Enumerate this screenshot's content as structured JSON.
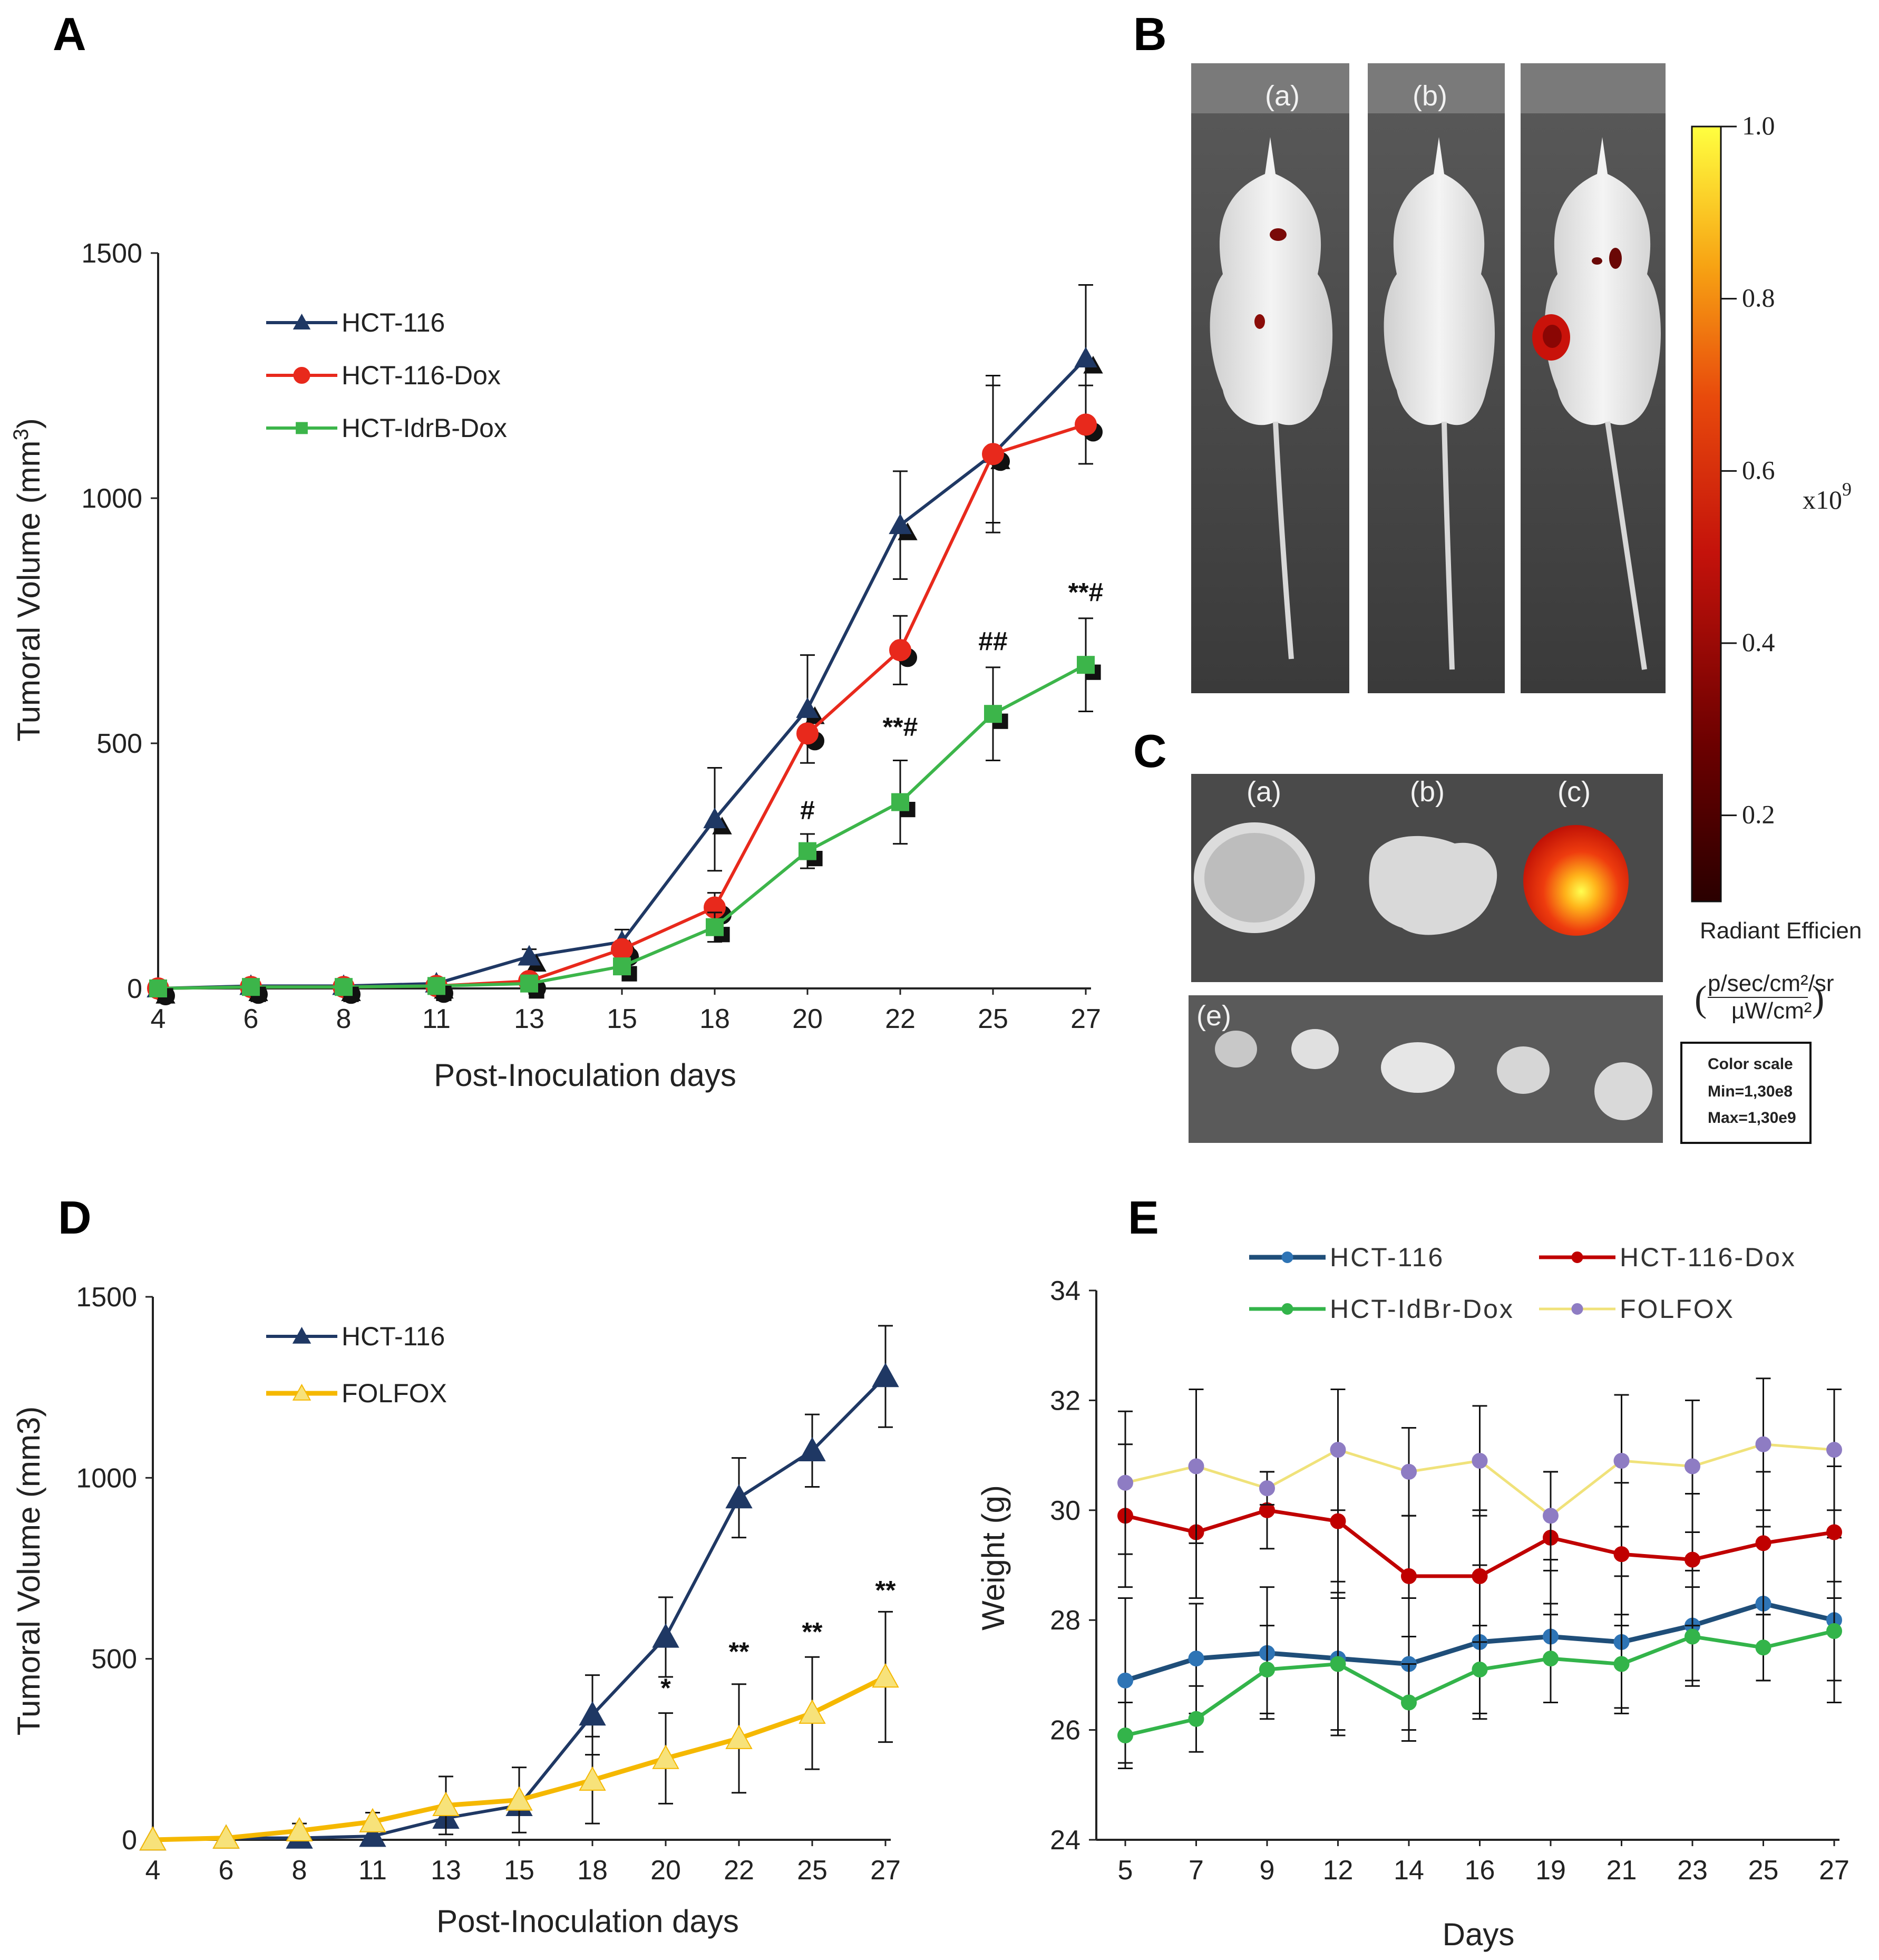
{
  "panels": {
    "A": "A",
    "B": "B",
    "C": "C",
    "D": "D",
    "E": "E"
  },
  "colors": {
    "hct116": "#1f3864",
    "hct116dox": "#e8291c",
    "hctidrb": "#3cb54a",
    "folfox_d": "#f5b800",
    "folfox_e": "#f0e27a",
    "folfox_e_marker": "#8e7cc3"
  },
  "chart_data": [
    {
      "id": "A",
      "type": "line",
      "xlabel": "Post-Inoculation days",
      "ylabel": "Tumoral Volume (mm",
      "ylabel_sup": "3",
      "ylabel_end": ")",
      "categories": [
        "4",
        "6",
        "8",
        "11",
        "13",
        "15",
        "18",
        "20",
        "22",
        "25",
        "27"
      ],
      "yticks": [
        "0",
        "500",
        "1000",
        "1500"
      ],
      "ylim": [
        0,
        1500
      ],
      "series": [
        {
          "name": "HCT-116",
          "marker": "triangle",
          "values": [
            0,
            5,
            5,
            10,
            65,
            95,
            345,
            570,
            945,
            1090,
            1285
          ],
          "errors": [
            0,
            0,
            0,
            0,
            15,
            25,
            105,
            110,
            110,
            160,
            150
          ]
        },
        {
          "name": "HCT-116-Dox",
          "marker": "circle",
          "values": [
            0,
            3,
            3,
            5,
            15,
            80,
            165,
            520,
            690,
            1090,
            1150
          ],
          "errors": [
            0,
            0,
            0,
            0,
            0,
            0,
            30,
            0,
            70,
            140,
            80
          ]
        },
        {
          "name": "HCT-IdrB-Dox",
          "marker": "square",
          "values": [
            0,
            3,
            3,
            5,
            10,
            45,
            125,
            280,
            380,
            560,
            660
          ],
          "errors": [
            0,
            0,
            0,
            0,
            0,
            0,
            30,
            35,
            85,
            95,
            95
          ]
        }
      ],
      "annotations": [
        {
          "x": "20",
          "text": "#",
          "y": 345
        },
        {
          "x": "22",
          "text": "**#",
          "y": 515
        },
        {
          "x": "25",
          "text": "##",
          "y": 690
        },
        {
          "x": "27",
          "text": "**#",
          "y": 790
        }
      ]
    },
    {
      "id": "D",
      "type": "line",
      "xlabel": "Post-Inoculation days",
      "ylabel": "Tumoral Volume (mm3)",
      "categories": [
        "4",
        "6",
        "8",
        "11",
        "13",
        "15",
        "18",
        "20",
        "22",
        "25",
        "27"
      ],
      "yticks": [
        "0",
        "500",
        "1000",
        "1500"
      ],
      "ylim": [
        0,
        1500
      ],
      "series": [
        {
          "name": "HCT-116",
          "marker": "triangle",
          "values": [
            0,
            5,
            5,
            10,
            60,
            95,
            345,
            560,
            945,
            1075,
            1280
          ],
          "errors": [
            0,
            0,
            0,
            0,
            0,
            0,
            110,
            110,
            110,
            100,
            140
          ]
        },
        {
          "name": "FOLFOX",
          "marker": "triangle",
          "values": [
            0,
            5,
            25,
            50,
            95,
            110,
            165,
            225,
            280,
            350,
            450
          ],
          "errors": [
            0,
            0,
            20,
            25,
            80,
            90,
            120,
            125,
            150,
            155,
            180
          ]
        }
      ],
      "annotations": [
        {
          "x": "20",
          "text": "*",
          "y": 395
        },
        {
          "x": "22",
          "text": "**",
          "y": 495
        },
        {
          "x": "25",
          "text": "**",
          "y": 550
        },
        {
          "x": "27",
          "text": "**",
          "y": 665
        }
      ]
    },
    {
      "id": "E",
      "type": "line",
      "xlabel": "Days",
      "ylabel": "Weight (g)",
      "categories": [
        "5",
        "7",
        "9",
        "12",
        "14",
        "16",
        "19",
        "21",
        "23",
        "25",
        "27"
      ],
      "yticks": [
        "24",
        "26",
        "28",
        "30",
        "32",
        "34"
      ],
      "ylim": [
        24,
        34
      ],
      "series": [
        {
          "name": "HCT-116",
          "marker": "circle",
          "values": [
            26.9,
            27.3,
            27.4,
            27.3,
            27.2,
            27.6,
            27.7,
            27.6,
            27.9,
            28.3,
            28.0
          ],
          "errors": [
            1.5,
            1.0,
            1.2,
            1.4,
            1.2,
            1.4,
            1.2,
            1.2,
            1.0,
            1.4,
            1.5
          ]
        },
        {
          "name": "HCT-116-Dox",
          "marker": "circle",
          "values": [
            29.9,
            29.6,
            30.0,
            29.8,
            28.8,
            28.8,
            29.5,
            29.2,
            29.1,
            29.4,
            29.6
          ],
          "errors": [
            1.3,
            1.2,
            0.7,
            1.3,
            1.1,
            1.2,
            1.2,
            1.3,
            1.2,
            1.3,
            1.2
          ]
        },
        {
          "name": "HCT-IdBr-Dox",
          "marker": "circle",
          "values": [
            25.9,
            26.2,
            27.1,
            27.2,
            26.5,
            27.1,
            27.3,
            27.2,
            27.7,
            27.5,
            27.8
          ],
          "errors": [
            0.6,
            0.6,
            0.8,
            1.2,
            0.7,
            0.8,
            0.8,
            0.9,
            0.9,
            0.6,
            0.9
          ]
        },
        {
          "name": "FOLFOX",
          "marker": "circle",
          "values": [
            30.5,
            30.8,
            30.4,
            31.1,
            30.7,
            30.9,
            29.9,
            30.9,
            30.8,
            31.2,
            31.1
          ],
          "errors": [
            1.3,
            1.4,
            0.3,
            1.1,
            0.8,
            1.0,
            0.8,
            1.2,
            1.2,
            1.2,
            1.1
          ]
        }
      ]
    }
  ],
  "photos": {
    "mice_labels": [
      "(a)",
      "(b)",
      ""
    ],
    "tumor_labels": [
      "(a)",
      "(b)",
      "(c)"
    ],
    "organ_label": "(e)"
  },
  "colorbar": {
    "ticks": [
      "0.2",
      "0.4",
      "0.6",
      "0.8",
      "1.0"
    ],
    "tick_values": [
      0.2,
      0.4,
      0.6,
      0.8,
      1.0
    ],
    "multiplier": "x10",
    "multiplier_sup": "9",
    "title": "Radiant Efficien",
    "units_num": "p/sec/cm²/sr",
    "units_den": "µW/cm²",
    "scale_title": "Color scale",
    "scale_min": "Min=1,30e8",
    "scale_max": "Max=1,30e9"
  }
}
